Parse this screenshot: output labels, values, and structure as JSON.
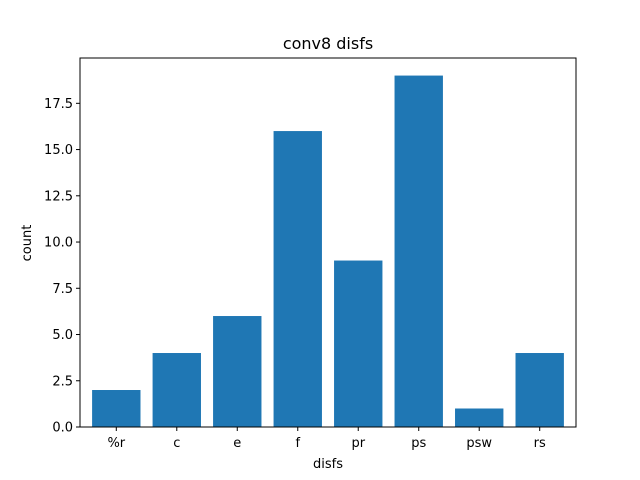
{
  "chart_data": {
    "type": "bar",
    "title": "conv8 disfs",
    "xlabel": "disfs",
    "ylabel": "count",
    "categories": [
      "%r",
      "c",
      "e",
      "f",
      "pr",
      "ps",
      "psw",
      "rs"
    ],
    "values": [
      2,
      4,
      6,
      16,
      9,
      19,
      1,
      4
    ],
    "ylim": [
      0,
      19.95
    ],
    "yticks": [
      "0.0",
      "2.5",
      "5.0",
      "7.5",
      "10.0",
      "12.5",
      "15.0",
      "17.5"
    ],
    "grid": false,
    "bar_color": "#1f77b4"
  }
}
